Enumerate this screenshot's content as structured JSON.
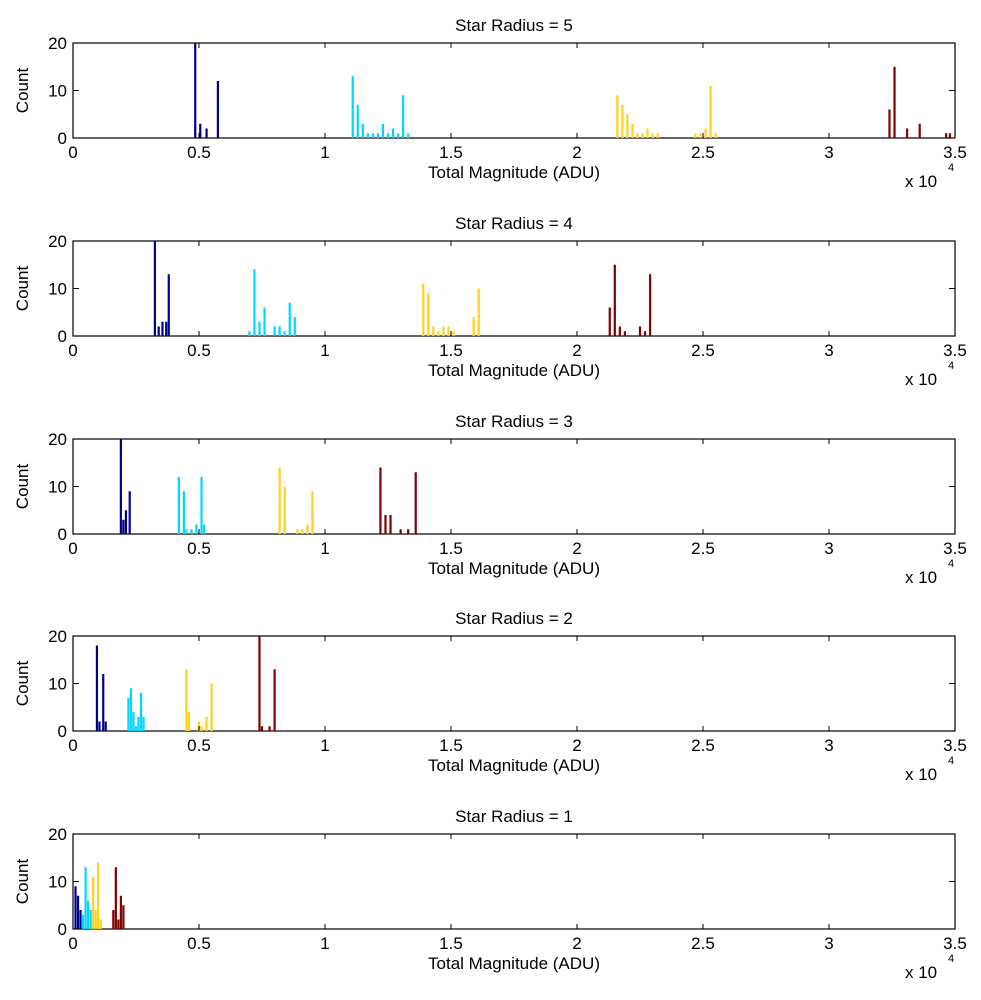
{
  "chart_data": [
    {
      "type": "bar",
      "title": "Star Radius = 5",
      "xlabel": "Total Magnitude (ADU)",
      "ylabel": "Count",
      "x_multiplier_base": "x 10",
      "x_multiplier_exponent": "4",
      "xlim": [
        0,
        3.5
      ],
      "ylim": [
        0,
        20
      ],
      "x_ticks": [
        "0",
        "0.5",
        "1",
        "1.5",
        "2",
        "2.5",
        "3",
        "3.5"
      ],
      "y_ticks": [
        "0",
        "10",
        "20"
      ],
      "grid": false,
      "series": [
        {
          "color": "#00008b",
          "x": [
            0.485,
            0.505,
            0.53,
            0.575
          ],
          "values": [
            20,
            3,
            2,
            12
          ]
        },
        {
          "color": "#00d7ff",
          "x": [
            1.11,
            1.13,
            1.15,
            1.17,
            1.19,
            1.21,
            1.23,
            1.25,
            1.27,
            1.29,
            1.31,
            1.33
          ],
          "values": [
            13,
            7,
            3,
            1,
            1,
            1,
            3,
            1,
            2,
            1,
            9,
            1
          ]
        },
        {
          "color": "#ffd21a",
          "x": [
            2.16,
            2.18,
            2.2,
            2.22,
            2.24,
            2.26,
            2.28,
            2.3,
            2.32,
            2.47,
            2.49,
            2.51,
            2.53,
            2.55
          ],
          "values": [
            9,
            7,
            5,
            3,
            1,
            1,
            2,
            1,
            1,
            1,
            1,
            2,
            11,
            1
          ]
        },
        {
          "color": "#800000",
          "x": [
            3.24,
            3.26,
            3.31,
            3.36,
            3.465,
            3.48
          ],
          "values": [
            6,
            15,
            2,
            3,
            1,
            1
          ]
        }
      ]
    },
    {
      "type": "bar",
      "title": "Star Radius = 4",
      "xlabel": "Total Magnitude (ADU)",
      "ylabel": "Count",
      "x_multiplier_base": "x 10",
      "x_multiplier_exponent": "4",
      "xlim": [
        0,
        3.5
      ],
      "ylim": [
        0,
        20
      ],
      "x_ticks": [
        "0",
        "0.5",
        "1",
        "1.5",
        "2",
        "2.5",
        "3",
        "3.5"
      ],
      "y_ticks": [
        "0",
        "10",
        "20"
      ],
      "grid": false,
      "series": [
        {
          "color": "#00008b",
          "x": [
            0.325,
            0.34,
            0.355,
            0.37,
            0.38
          ],
          "values": [
            20,
            2,
            3,
            3,
            13
          ]
        },
        {
          "color": "#00d7ff",
          "x": [
            0.7,
            0.72,
            0.74,
            0.76,
            0.8,
            0.82,
            0.84,
            0.86,
            0.88
          ],
          "values": [
            1,
            14,
            3,
            6,
            2,
            2,
            1,
            7,
            4
          ]
        },
        {
          "color": "#ffd21a",
          "x": [
            1.39,
            1.41,
            1.43,
            1.45,
            1.47,
            1.49,
            1.51,
            1.59,
            1.61
          ],
          "values": [
            11,
            9,
            2,
            1,
            2,
            2,
            1,
            4,
            10
          ]
        },
        {
          "color": "#800000",
          "x": [
            2.13,
            2.15,
            2.17,
            2.19,
            2.25,
            2.27,
            2.29
          ],
          "values": [
            6,
            15,
            2,
            1,
            2,
            1,
            13
          ]
        }
      ]
    },
    {
      "type": "bar",
      "title": "Star Radius = 3",
      "xlabel": "Total Magnitude (ADU)",
      "ylabel": "Count",
      "x_multiplier_base": "x 10",
      "x_multiplier_exponent": "4",
      "xlim": [
        0,
        3.5
      ],
      "ylim": [
        0,
        20
      ],
      "x_ticks": [
        "0",
        "0.5",
        "1",
        "1.5",
        "2",
        "2.5",
        "3",
        "3.5"
      ],
      "y_ticks": [
        "0",
        "10",
        "20"
      ],
      "grid": false,
      "series": [
        {
          "color": "#00008b",
          "x": [
            0.19,
            0.2,
            0.21,
            0.225
          ],
          "values": [
            20,
            3,
            5,
            9
          ]
        },
        {
          "color": "#00d7ff",
          "x": [
            0.42,
            0.44,
            0.45,
            0.47,
            0.49,
            0.51,
            0.52
          ],
          "values": [
            12,
            9,
            1,
            1,
            2,
            12,
            2
          ]
        },
        {
          "color": "#ffd21a",
          "x": [
            0.82,
            0.84,
            0.89,
            0.91,
            0.93,
            0.95
          ],
          "values": [
            14,
            10,
            1,
            1,
            2,
            9
          ]
        },
        {
          "color": "#800000",
          "x": [
            1.22,
            1.24,
            1.26,
            1.3,
            1.33,
            1.36
          ],
          "values": [
            14,
            4,
            4,
            1,
            1,
            13
          ]
        }
      ]
    },
    {
      "type": "bar",
      "title": "Star Radius = 2",
      "xlabel": "Total Magnitude (ADU)",
      "ylabel": "Count",
      "x_multiplier_base": "x 10",
      "x_multiplier_exponent": "4",
      "xlim": [
        0,
        3.5
      ],
      "ylim": [
        0,
        20
      ],
      "x_ticks": [
        "0",
        "0.5",
        "1",
        "1.5",
        "2",
        "2.5",
        "3",
        "3.5"
      ],
      "y_ticks": [
        "0",
        "10",
        "20"
      ],
      "grid": false,
      "series": [
        {
          "color": "#00008b",
          "x": [
            0.095,
            0.105,
            0.12,
            0.13
          ],
          "values": [
            18,
            2,
            12,
            2
          ]
        },
        {
          "color": "#00d7ff",
          "x": [
            0.22,
            0.23,
            0.24,
            0.25,
            0.26,
            0.27,
            0.28
          ],
          "values": [
            7,
            9,
            4,
            1,
            3,
            8,
            3
          ]
        },
        {
          "color": "#ffd21a",
          "x": [
            0.45,
            0.46,
            0.5,
            0.51,
            0.53,
            0.55
          ],
          "values": [
            13,
            4,
            2,
            1,
            3,
            10
          ]
        },
        {
          "color": "#800000",
          "x": [
            0.74,
            0.75,
            0.78,
            0.8
          ],
          "values": [
            20,
            1,
            1,
            13
          ]
        }
      ]
    },
    {
      "type": "bar",
      "title": "Star Radius = 1",
      "xlabel": "Total Magnitude (ADU)",
      "ylabel": "Count",
      "x_multiplier_base": "x 10",
      "x_multiplier_exponent": "4",
      "xlim": [
        0,
        3.5
      ],
      "ylim": [
        0,
        20
      ],
      "x_ticks": [
        "0",
        "0.5",
        "1",
        "1.5",
        "2",
        "2.5",
        "3",
        "3.5"
      ],
      "y_ticks": [
        "0",
        "10",
        "20"
      ],
      "grid": false,
      "series": [
        {
          "color": "#00008b",
          "x": [
            0.01,
            0.02,
            0.03
          ],
          "values": [
            9,
            7,
            4
          ]
        },
        {
          "color": "#00d7ff",
          "x": [
            0.04,
            0.05,
            0.06,
            0.07
          ],
          "values": [
            3,
            13,
            6,
            4
          ]
        },
        {
          "color": "#ffd21a",
          "x": [
            0.08,
            0.09,
            0.1,
            0.11
          ],
          "values": [
            11,
            4,
            14,
            2
          ]
        },
        {
          "color": "#800000",
          "x": [
            0.16,
            0.17,
            0.18,
            0.19,
            0.2
          ],
          "values": [
            4,
            13,
            2,
            7,
            5
          ]
        }
      ]
    }
  ]
}
